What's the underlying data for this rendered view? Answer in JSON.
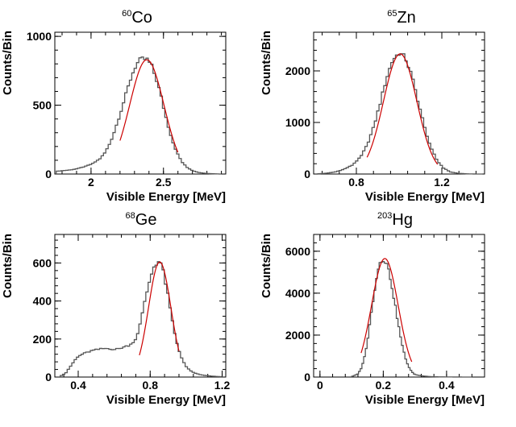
{
  "chart_data": [
    {
      "type": "histogram",
      "title_sup": "60",
      "title": "Co",
      "xlabel": "Visible Energy [MeV]",
      "ylabel": "Counts/Bin",
      "xlim": [
        1.75,
        2.93
      ],
      "ylim": [
        0,
        1030
      ],
      "xticks": [
        2,
        2.5
      ],
      "xtick_labels": [
        "2",
        "2.5"
      ],
      "yticks": [
        0,
        500,
        1000
      ],
      "ytick_labels": [
        "0",
        "500",
        "1000"
      ],
      "hist_color": "#555555",
      "fit_color": "#cc0000",
      "hist": {
        "x": [
          1.76,
          1.81,
          1.86,
          1.91,
          1.96,
          2.01,
          2.06,
          2.09,
          2.12,
          2.15,
          2.18,
          2.21,
          2.24,
          2.27,
          2.3,
          2.33,
          2.36,
          2.39,
          2.42,
          2.45,
          2.48,
          2.51,
          2.54,
          2.57,
          2.6,
          2.63,
          2.66,
          2.7,
          2.74,
          2.78,
          2.82,
          2.86,
          2.9
        ],
        "y": [
          20,
          25,
          30,
          40,
          55,
          75,
          110,
          145,
          200,
          275,
          370,
          470,
          575,
          680,
          770,
          820,
          835,
          830,
          780,
          690,
          580,
          440,
          320,
          215,
          140,
          85,
          50,
          25,
          12,
          6,
          3,
          1,
          0
        ]
      },
      "fit": {
        "mu": 2.385,
        "sigma": 0.118,
        "amp": 830,
        "x_range": [
          2.2,
          2.6
        ]
      }
    },
    {
      "type": "histogram",
      "title_sup": "65",
      "title": "Zn",
      "xlabel": "Visible Energy [MeV]",
      "ylabel": "Counts/Bin",
      "xlim": [
        0.6,
        1.4
      ],
      "ylim": [
        0,
        2750
      ],
      "xticks": [
        0.8,
        1.2
      ],
      "xtick_labels": [
        "0.8",
        "1.2"
      ],
      "yticks": [
        0,
        1000,
        2000
      ],
      "ytick_labels": [
        "0",
        "1000",
        "2000"
      ],
      "hist_color": "#555555",
      "fit_color": "#cc0000",
      "hist": {
        "x": [
          0.62,
          0.66,
          0.7,
          0.74,
          0.78,
          0.82,
          0.85,
          0.88,
          0.91,
          0.94,
          0.97,
          1.0,
          1.03,
          1.06,
          1.09,
          1.12,
          1.15,
          1.18,
          1.21,
          1.24,
          1.28,
          1.32,
          1.36,
          1.39
        ],
        "y": [
          5,
          15,
          40,
          90,
          170,
          330,
          560,
          900,
          1350,
          1850,
          2220,
          2350,
          2250,
          1900,
          1400,
          900,
          500,
          250,
          110,
          40,
          12,
          3,
          0,
          0
        ]
      },
      "fit": {
        "mu": 1.005,
        "sigma": 0.078,
        "amp": 2330,
        "x_range": [
          0.85,
          1.18
        ]
      }
    },
    {
      "type": "histogram",
      "title_sup": "68",
      "title": "Ge",
      "xlabel": "Visible Energy [MeV]",
      "ylabel": "Counts/Bin",
      "xlim": [
        0.27,
        1.22
      ],
      "ylim": [
        0,
        750
      ],
      "xticks": [
        0.4,
        0.8,
        1.2
      ],
      "xtick_labels": [
        "0.4",
        "0.8",
        "1.2"
      ],
      "yticks": [
        0,
        200,
        400,
        600
      ],
      "ytick_labels": [
        "0",
        "200",
        "400",
        "600"
      ],
      "hist_color": "#555555",
      "fit_color": "#cc0000",
      "hist": {
        "x": [
          0.3,
          0.33,
          0.36,
          0.39,
          0.42,
          0.45,
          0.48,
          0.51,
          0.54,
          0.57,
          0.6,
          0.63,
          0.66,
          0.69,
          0.72,
          0.74,
          0.76,
          0.78,
          0.8,
          0.82,
          0.84,
          0.86,
          0.88,
          0.9,
          0.92,
          0.94,
          0.96,
          0.98,
          1.0,
          1.02,
          1.05,
          1.08,
          1.11,
          1.14,
          1.17,
          1.2
        ],
        "y": [
          5,
          20,
          60,
          100,
          120,
          130,
          140,
          145,
          150,
          150,
          145,
          150,
          160,
          170,
          200,
          260,
          350,
          440,
          520,
          580,
          610,
          600,
          520,
          420,
          310,
          210,
          140,
          90,
          55,
          35,
          20,
          12,
          8,
          5,
          3,
          2
        ]
      },
      "fit": {
        "mu": 0.853,
        "sigma": 0.062,
        "amp": 605,
        "x_range": [
          0.74,
          0.96
        ]
      }
    },
    {
      "type": "histogram",
      "title_sup": "203",
      "title": "Hg",
      "xlabel": "Visible Energy [MeV]",
      "ylabel": "Counts/Bin",
      "xlim": [
        -0.02,
        0.52
      ],
      "ylim": [
        0,
        6800
      ],
      "xticks": [
        0,
        0.2,
        0.4
      ],
      "xtick_labels": [
        "0",
        "0.2",
        "0.4"
      ],
      "yticks": [
        0,
        2000,
        4000,
        6000
      ],
      "ytick_labels": [
        "0",
        "2000",
        "4000",
        "6000"
      ],
      "hist_color": "#555555",
      "fit_color": "#cc0000",
      "hist": {
        "x": [
          0.1,
          0.12,
          0.13,
          0.14,
          0.15,
          0.16,
          0.17,
          0.18,
          0.19,
          0.2,
          0.21,
          0.22,
          0.23,
          0.24,
          0.25,
          0.26,
          0.27,
          0.28,
          0.29,
          0.3,
          0.32,
          0.34,
          0.36,
          0.38,
          0.4,
          0.42,
          0.45,
          0.48
        ],
        "y": [
          20,
          150,
          400,
          900,
          1700,
          2800,
          3900,
          4900,
          5500,
          5650,
          5450,
          4900,
          4100,
          3200,
          2300,
          1500,
          900,
          500,
          250,
          120,
          60,
          30,
          15,
          8,
          5,
          3,
          1,
          0
        ]
      },
      "fit": {
        "mu": 0.205,
        "sigma": 0.042,
        "amp": 5650,
        "x_range": [
          0.13,
          0.29
        ]
      }
    }
  ]
}
